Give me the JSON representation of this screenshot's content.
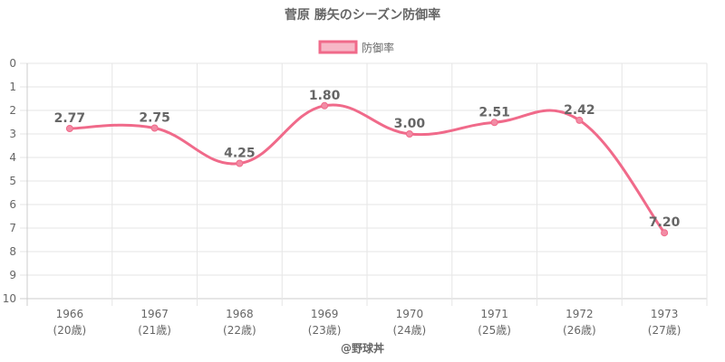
{
  "chart_data": {
    "type": "line",
    "title": "菅原 勝矢のシーズン防御率",
    "series": [
      {
        "name": "防御率",
        "values": [
          2.77,
          2.75,
          4.25,
          1.8,
          3.0,
          2.51,
          2.42,
          7.2
        ]
      }
    ],
    "categories": [
      "1966",
      "1967",
      "1968",
      "1969",
      "1970",
      "1971",
      "1972",
      "1973"
    ],
    "category_sublabels": [
      "(20歳)",
      "(21歳)",
      "(22歳)",
      "(23歳)",
      "(24歳)",
      "(25歳)",
      "(26歳)",
      "(27歳)"
    ],
    "data_labels": [
      "2.77",
      "2.75",
      "4.25",
      "1.80",
      "3.00",
      "2.51",
      "2.42",
      "7.20"
    ],
    "ylim": [
      0,
      10
    ],
    "y_reversed": true,
    "y_ticks": [
      "0",
      "1",
      "2",
      "3",
      "4",
      "5",
      "6",
      "7",
      "8",
      "9",
      "10"
    ],
    "grid": true,
    "legend_position": "top",
    "credit": "@野球丼",
    "colors": {
      "line": "#f06a8a",
      "point_fill": "#f28ca5",
      "legend_fill": "#f7b8c7",
      "grid": "#e6e6e6",
      "axis": "#cccccc"
    }
  }
}
